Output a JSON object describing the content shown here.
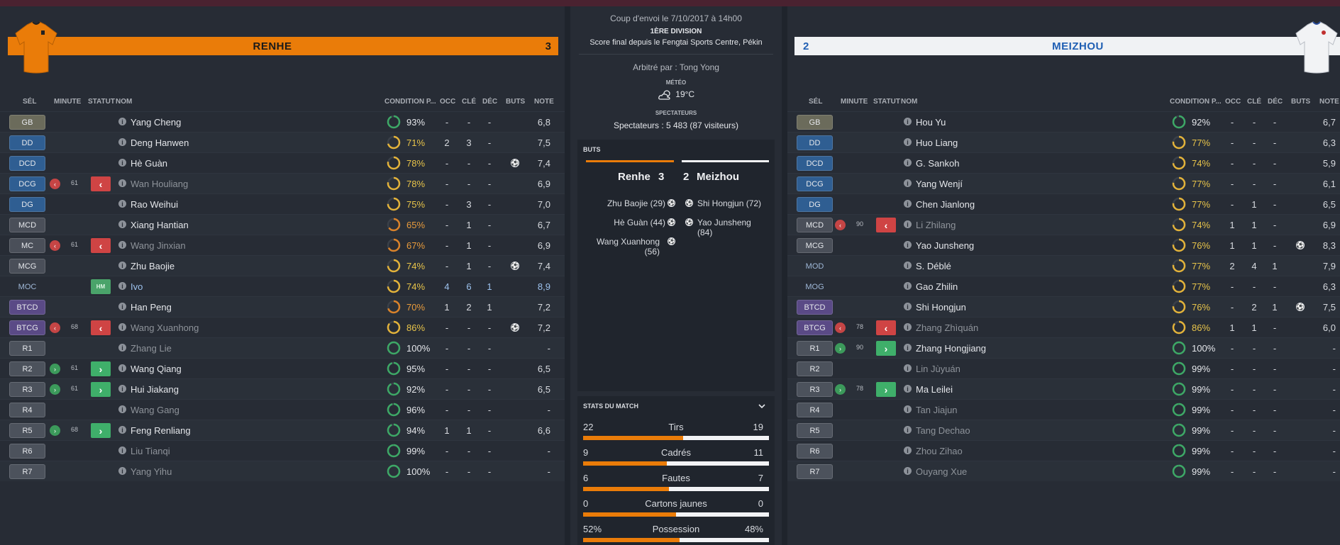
{
  "home": {
    "team": "RENHE",
    "score": "3",
    "headers": [
      "SÉL",
      "MINUTE",
      "STATUT",
      "NOM",
      "CONDITION P...",
      "OCC",
      "CLÉ",
      "DÉC",
      "BUTS",
      "NOTE"
    ],
    "players": [
      {
        "pos": "GB",
        "cls": "gk",
        "name": "Yang Cheng",
        "cond": "93%",
        "pct": 93,
        "tone": "green",
        "occ": "-",
        "cle": "-",
        "dec": "-",
        "buts": "",
        "note": "6,8"
      },
      {
        "pos": "DD",
        "cls": "def",
        "name": "Deng Hanwen",
        "cond": "71%",
        "pct": 71,
        "tone": "yellow",
        "occ": "2",
        "cle": "3",
        "dec": "-",
        "buts": "",
        "note": "7,5"
      },
      {
        "pos": "DCD",
        "cls": "def",
        "name": "Hè Guàn",
        "cond": "78%",
        "pct": 78,
        "tone": "yellow",
        "occ": "-",
        "cle": "-",
        "dec": "-",
        "buts": "goal",
        "note": "7,4"
      },
      {
        "pos": "DCG",
        "cls": "def",
        "name": "Wan Houliang",
        "cond": "78%",
        "pct": 78,
        "tone": "yellow",
        "occ": "-",
        "cle": "-",
        "dec": "-",
        "buts": "",
        "note": "6,9",
        "sub": "out",
        "minute": "61",
        "dim": true
      },
      {
        "pos": "DG",
        "cls": "def",
        "name": "Rao Weihui",
        "cond": "75%",
        "pct": 75,
        "tone": "yellow",
        "occ": "-",
        "cle": "3",
        "dec": "-",
        "buts": "",
        "note": "7,0"
      },
      {
        "pos": "MCD",
        "cls": "mid",
        "name": "Xiang Hantian",
        "cond": "65%",
        "pct": 65,
        "tone": "orange",
        "occ": "-",
        "cle": "1",
        "dec": "-",
        "buts": "",
        "note": "6,7"
      },
      {
        "pos": "MC",
        "cls": "mid",
        "name": "Wang Jinxian",
        "cond": "67%",
        "pct": 67,
        "tone": "orange",
        "occ": "-",
        "cle": "1",
        "dec": "-",
        "buts": "",
        "note": "6,9",
        "sub": "out",
        "minute": "61",
        "dim": true
      },
      {
        "pos": "MCG",
        "cls": "mid",
        "name": "Zhu Baojie",
        "cond": "74%",
        "pct": 74,
        "tone": "yellow",
        "occ": "-",
        "cle": "1",
        "dec": "-",
        "buts": "goal",
        "note": "7,4"
      },
      {
        "pos": "MOC",
        "cls": "none",
        "name": "Ivo",
        "cond": "74%",
        "pct": 74,
        "tone": "yellow",
        "occ": "4",
        "cle": "6",
        "dec": "1",
        "buts": "",
        "note": "8,9",
        "hm": "HM",
        "blue": true
      },
      {
        "pos": "BTCD",
        "cls": "att",
        "name": "Han Peng",
        "cond": "70%",
        "pct": 70,
        "tone": "orange",
        "occ": "1",
        "cle": "2",
        "dec": "1",
        "buts": "",
        "note": "7,2"
      },
      {
        "pos": "BTCG",
        "cls": "att",
        "name": "Wang Xuanhong",
        "cond": "86%",
        "pct": 86,
        "tone": "yellow",
        "occ": "-",
        "cle": "-",
        "dec": "-",
        "buts": "goal",
        "note": "7,2",
        "sub": "out",
        "minute": "68",
        "dim": true
      },
      {
        "pos": "R1",
        "cls": "sub",
        "name": "Zhang Lie",
        "cond": "100%",
        "pct": 100,
        "tone": "green",
        "occ": "-",
        "cle": "-",
        "dec": "-",
        "buts": "",
        "note": "-",
        "dim": true
      },
      {
        "pos": "R2",
        "cls": "sub",
        "name": "Wang Qiang",
        "cond": "95%",
        "pct": 95,
        "tone": "green",
        "occ": "-",
        "cle": "-",
        "dec": "-",
        "buts": "",
        "note": "6,5",
        "sub": "in",
        "minute": "61"
      },
      {
        "pos": "R3",
        "cls": "sub",
        "name": "Hui Jiakang",
        "cond": "92%",
        "pct": 92,
        "tone": "green",
        "occ": "-",
        "cle": "-",
        "dec": "-",
        "buts": "",
        "note": "6,5",
        "sub": "in",
        "minute": "61"
      },
      {
        "pos": "R4",
        "cls": "sub",
        "name": "Wang Gang",
        "cond": "96%",
        "pct": 96,
        "tone": "green",
        "occ": "-",
        "cle": "-",
        "dec": "-",
        "buts": "",
        "note": "-",
        "dim": true
      },
      {
        "pos": "R5",
        "cls": "sub",
        "name": "Feng Renliang",
        "cond": "94%",
        "pct": 94,
        "tone": "green",
        "occ": "1",
        "cle": "1",
        "dec": "-",
        "buts": "",
        "note": "6,6",
        "sub": "in",
        "minute": "68"
      },
      {
        "pos": "R6",
        "cls": "sub",
        "name": "Liu Tianqi",
        "cond": "99%",
        "pct": 99,
        "tone": "green",
        "occ": "-",
        "cle": "-",
        "dec": "-",
        "buts": "",
        "note": "-",
        "dim": true
      },
      {
        "pos": "R7",
        "cls": "sub",
        "name": "Yang Yihu",
        "cond": "100%",
        "pct": 100,
        "tone": "green",
        "occ": "-",
        "cle": "-",
        "dec": "-",
        "buts": "",
        "note": "-",
        "dim": true
      }
    ]
  },
  "away": {
    "team": "MEIZHOU",
    "score": "2",
    "headers": [
      "SÉL",
      "MINUTE",
      "STATUT",
      "NOM",
      "CONDITION P...",
      "OCC",
      "CLÉ",
      "DÉC",
      "BUTS",
      "NOTE"
    ],
    "players": [
      {
        "pos": "GB",
        "cls": "gk",
        "name": "Hou Yu",
        "cond": "92%",
        "pct": 92,
        "tone": "green",
        "occ": "-",
        "cle": "-",
        "dec": "-",
        "buts": "",
        "note": "6,7"
      },
      {
        "pos": "DD",
        "cls": "def",
        "name": "Huo Liang",
        "cond": "77%",
        "pct": 77,
        "tone": "yellow",
        "occ": "-",
        "cle": "-",
        "dec": "-",
        "buts": "",
        "note": "6,3"
      },
      {
        "pos": "DCD",
        "cls": "def",
        "name": "G. Sankoh",
        "cond": "74%",
        "pct": 74,
        "tone": "yellow",
        "occ": "-",
        "cle": "-",
        "dec": "-",
        "buts": "",
        "note": "5,9"
      },
      {
        "pos": "DCG",
        "cls": "def",
        "name": "Yang Wenjí",
        "cond": "77%",
        "pct": 77,
        "tone": "yellow",
        "occ": "-",
        "cle": "-",
        "dec": "-",
        "buts": "",
        "note": "6,1"
      },
      {
        "pos": "DG",
        "cls": "def",
        "name": "Chen Jianlong",
        "cond": "77%",
        "pct": 77,
        "tone": "yellow",
        "occ": "-",
        "cle": "1",
        "dec": "-",
        "buts": "",
        "note": "6,5"
      },
      {
        "pos": "MCD",
        "cls": "mid",
        "name": "Li Zhilang",
        "cond": "74%",
        "pct": 74,
        "tone": "yellow",
        "occ": "1",
        "cle": "1",
        "dec": "-",
        "buts": "",
        "note": "6,9",
        "sub": "out",
        "minute": "90",
        "dim": true
      },
      {
        "pos": "MCG",
        "cls": "mid",
        "name": "Yao Junsheng",
        "cond": "76%",
        "pct": 76,
        "tone": "yellow",
        "occ": "1",
        "cle": "1",
        "dec": "-",
        "buts": "goal",
        "note": "8,3"
      },
      {
        "pos": "MOD",
        "cls": "none",
        "name": "S. Déblé",
        "cond": "77%",
        "pct": 77,
        "tone": "yellow",
        "occ": "2",
        "cle": "4",
        "dec": "1",
        "buts": "",
        "note": "7,9",
        "plain": true
      },
      {
        "pos": "MOG",
        "cls": "none",
        "name": "Gao Zhilin",
        "cond": "77%",
        "pct": 77,
        "tone": "yellow",
        "occ": "-",
        "cle": "-",
        "dec": "-",
        "buts": "",
        "note": "6,3",
        "plain": true
      },
      {
        "pos": "BTCD",
        "cls": "att",
        "name": "Shi Hongjun",
        "cond": "76%",
        "pct": 76,
        "tone": "yellow",
        "occ": "-",
        "cle": "2",
        "dec": "1",
        "buts": "goal",
        "note": "7,5"
      },
      {
        "pos": "BTCG",
        "cls": "att",
        "name": "Zhang Zhìquán",
        "cond": "86%",
        "pct": 86,
        "tone": "yellow",
        "occ": "1",
        "cle": "1",
        "dec": "-",
        "buts": "",
        "note": "6,0",
        "sub": "out",
        "minute": "78",
        "dim": true
      },
      {
        "pos": "R1",
        "cls": "sub",
        "name": "Zhang Hongjiang",
        "cond": "100%",
        "pct": 100,
        "tone": "green",
        "occ": "-",
        "cle": "-",
        "dec": "-",
        "buts": "",
        "note": "-",
        "sub": "in",
        "minute": "90"
      },
      {
        "pos": "R2",
        "cls": "sub",
        "name": "Lin Jùyuán",
        "cond": "99%",
        "pct": 99,
        "tone": "green",
        "occ": "-",
        "cle": "-",
        "dec": "-",
        "buts": "",
        "note": "-",
        "dim": true
      },
      {
        "pos": "R3",
        "cls": "sub",
        "name": "Ma Leilei",
        "cond": "99%",
        "pct": 99,
        "tone": "green",
        "occ": "-",
        "cle": "-",
        "dec": "-",
        "buts": "",
        "note": "-",
        "sub": "in",
        "minute": "78"
      },
      {
        "pos": "R4",
        "cls": "sub",
        "name": "Tan Jiajun",
        "cond": "99%",
        "pct": 99,
        "tone": "green",
        "occ": "-",
        "cle": "-",
        "dec": "-",
        "buts": "",
        "note": "-",
        "dim": true
      },
      {
        "pos": "R5",
        "cls": "sub",
        "name": "Tang Dechao",
        "cond": "99%",
        "pct": 99,
        "tone": "green",
        "occ": "-",
        "cle": "-",
        "dec": "-",
        "buts": "",
        "note": "-",
        "dim": true
      },
      {
        "pos": "R6",
        "cls": "sub",
        "name": "Zhou Zihao",
        "cond": "99%",
        "pct": 99,
        "tone": "green",
        "occ": "-",
        "cle": "-",
        "dec": "-",
        "buts": "",
        "note": "-",
        "dim": true
      },
      {
        "pos": "R7",
        "cls": "sub",
        "name": "Ouyang Xue",
        "cond": "99%",
        "pct": 99,
        "tone": "green",
        "occ": "-",
        "cle": "-",
        "dec": "-",
        "buts": "",
        "note": "-",
        "dim": true
      }
    ]
  },
  "match": {
    "kickoff": "Coup d'envoi le 7/10/2017 à 14h00",
    "division": "1ÈRE DIVISION",
    "final": "Score final depuis le Fengtai Sports Centre, Pékin",
    "referee": "Arbitré par : Tong Yong",
    "weather_label": "MÉTÉO",
    "weather_temp": "19°C",
    "spectators_label": "SPECTATEURS",
    "spectators": "Spectateurs : 5 483 (87 visiteurs)"
  },
  "goals": {
    "title": "BUTS",
    "home_team": "Renhe",
    "home_score": "3",
    "away_team": "Meizhou",
    "away_score": "2",
    "home_scorers": [
      "Zhu Baojie (29)",
      "Hè Guàn (44)",
      "Wang Xuanhong (56)"
    ],
    "away_scorers": [
      "Shi Hongjun (72)",
      "Yao Junsheng (84)"
    ]
  },
  "stats": {
    "title": "STATS DU MATCH",
    "rows": [
      {
        "label": "Tirs",
        "home": "22",
        "away": "19",
        "frac": 0.537
      },
      {
        "label": "Cadrés",
        "home": "9",
        "away": "11",
        "frac": 0.45
      },
      {
        "label": "Fautes",
        "home": "6",
        "away": "7",
        "frac": 0.46
      },
      {
        "label": "Cartons jaunes",
        "home": "0",
        "away": "0",
        "frac": 0.5
      },
      {
        "label": "Possession",
        "home": "52%",
        "away": "48%",
        "frac": 0.52
      }
    ]
  },
  "colors": {
    "home": "#ea7c09",
    "away": "#f0f2f4",
    "ring_green": "#3da866",
    "ring_yellow": "#e2b23a",
    "ring_orange": "#d9822a"
  }
}
